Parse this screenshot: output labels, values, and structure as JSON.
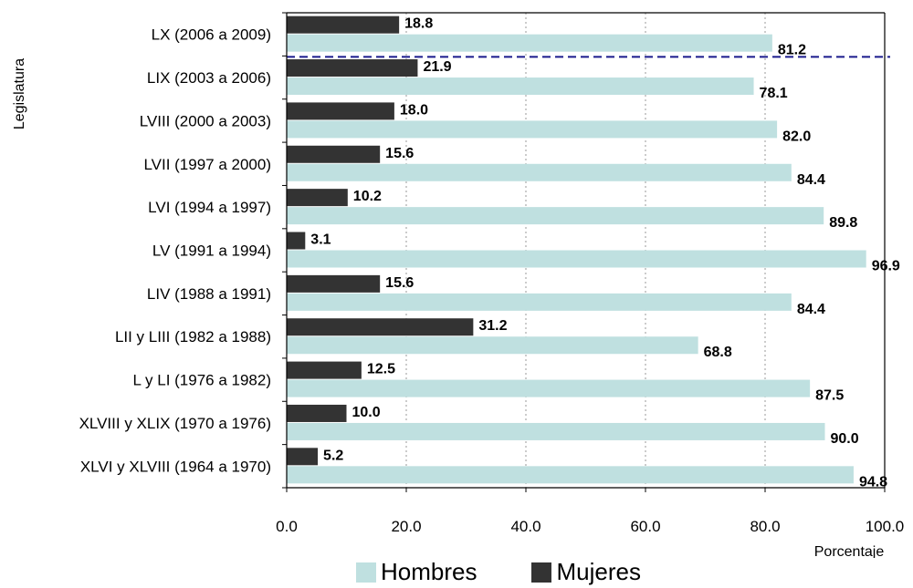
{
  "chart_data": {
    "type": "bar",
    "orientation": "horizontal",
    "categories": [
      "LX (2006 a 2009)",
      "LIX (2003 a 2006)",
      "LVIII (2000 a 2003)",
      "LVII (1997 a 2000)",
      "LVI (1994 a 1997)",
      "LV (1991 a 1994)",
      "LIV (1988 a 1991)",
      "LII y LIII (1982 a 1988)",
      "L y LI (1976 a 1982)",
      "XLVIII y XLIX (1970 a 1976)",
      "XLVI y XLVIII (1964 a 1970)"
    ],
    "series": [
      {
        "name": "Mujeres",
        "color": "#333333",
        "values": [
          18.8,
          21.9,
          18.0,
          15.6,
          10.2,
          3.1,
          15.6,
          31.2,
          12.5,
          10.0,
          5.2
        ],
        "labels": [
          "18.8",
          "21.9",
          "18.0",
          "15.6",
          "10.2",
          "3.1",
          "15.6",
          "31.2",
          "12.5",
          "10.0",
          "5.2"
        ]
      },
      {
        "name": "Hombres",
        "color": "#bfe0e0",
        "values": [
          81.2,
          78.1,
          82.0,
          84.4,
          89.8,
          96.9,
          84.4,
          68.8,
          87.5,
          90.0,
          94.8
        ],
        "labels": [
          "81.2",
          "78.1",
          "82.0",
          "84.4",
          "89.8",
          "96.9",
          "84.4",
          "68.8",
          "87.5",
          "90.0",
          "94.8"
        ]
      }
    ],
    "xlim": [
      0,
      100
    ],
    "xticks": [
      0,
      20,
      40,
      60,
      80,
      100
    ],
    "xtick_labels": [
      "0.0",
      "20.0",
      "40.0",
      "60.0",
      "80.0",
      "100.0"
    ],
    "xlabel": "Porcentaje",
    "ylabel": "Legislatura",
    "grid": "vertical dotted",
    "reference_line": "dashed separator below first category",
    "reference_color": "#1a1a8c",
    "legend_position": "bottom-center"
  },
  "legend": {
    "items": [
      {
        "label": "Hombres",
        "color": "#bfe0e0"
      },
      {
        "label": "Mujeres",
        "color": "#333333"
      }
    ]
  }
}
